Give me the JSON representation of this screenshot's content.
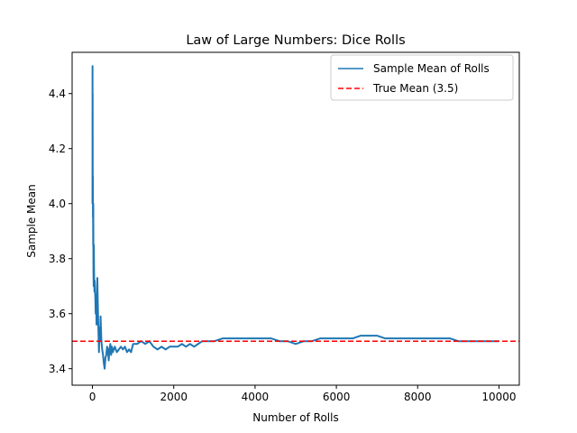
{
  "chart_data": {
    "type": "line",
    "title": "Law of Large Numbers: Dice Rolls",
    "xlabel": "Number of Rolls",
    "ylabel": "Sample Mean",
    "xlim": [
      -500,
      10500
    ],
    "ylim": [
      3.34,
      4.55
    ],
    "xticks": [
      0,
      2000,
      4000,
      6000,
      8000,
      10000
    ],
    "yticks": [
      3.4,
      3.6,
      3.8,
      4.0,
      4.2,
      4.4
    ],
    "xtick_labels": [
      "0",
      "2000",
      "4000",
      "6000",
      "8000",
      "10000"
    ],
    "ytick_labels": [
      "3.4",
      "3.6",
      "3.8",
      "4.0",
      "4.2",
      "4.4"
    ],
    "grid": false,
    "legend_position": "top-right",
    "series": [
      {
        "name": "Sample Mean of Rolls",
        "color": "#1f77b4",
        "style": "solid",
        "x": [
          1,
          2,
          3,
          4,
          5,
          6,
          8,
          10,
          12,
          15,
          18,
          20,
          25,
          30,
          35,
          40,
          45,
          50,
          55,
          60,
          70,
          80,
          90,
          100,
          110,
          120,
          130,
          140,
          150,
          160,
          170,
          180,
          190,
          200,
          220,
          240,
          260,
          280,
          300,
          320,
          340,
          360,
          380,
          400,
          420,
          440,
          460,
          480,
          500,
          550,
          600,
          650,
          700,
          750,
          800,
          850,
          900,
          950,
          1000,
          1100,
          1200,
          1300,
          1400,
          1500,
          1600,
          1700,
          1800,
          1900,
          2000,
          2100,
          2200,
          2300,
          2400,
          2500,
          2600,
          2700,
          2800,
          2900,
          3000,
          3200,
          3400,
          3600,
          3800,
          4000,
          4200,
          4400,
          4600,
          4800,
          5000,
          5200,
          5400,
          5600,
          5800,
          6000,
          6200,
          6400,
          6600,
          6800,
          7000,
          7200,
          7400,
          7600,
          7800,
          8000,
          8200,
          8400,
          8600,
          8800,
          9000,
          9200,
          9400,
          9600,
          9800,
          10000
        ],
        "y": [
          4.0,
          4.5,
          4.0,
          4.25,
          4.4,
          4.1,
          4.0,
          4.1,
          3.95,
          4.0,
          3.85,
          4.0,
          3.75,
          3.7,
          3.85,
          3.75,
          3.7,
          3.68,
          3.72,
          3.7,
          3.66,
          3.6,
          3.67,
          3.56,
          3.62,
          3.73,
          3.65,
          3.58,
          3.52,
          3.46,
          3.52,
          3.55,
          3.5,
          3.59,
          3.5,
          3.47,
          3.45,
          3.42,
          3.4,
          3.44,
          3.45,
          3.48,
          3.47,
          3.43,
          3.47,
          3.49,
          3.45,
          3.48,
          3.46,
          3.48,
          3.46,
          3.47,
          3.48,
          3.47,
          3.48,
          3.46,
          3.47,
          3.46,
          3.49,
          3.49,
          3.5,
          3.49,
          3.5,
          3.48,
          3.47,
          3.48,
          3.47,
          3.48,
          3.48,
          3.48,
          3.49,
          3.48,
          3.49,
          3.48,
          3.49,
          3.5,
          3.5,
          3.5,
          3.5,
          3.51,
          3.51,
          3.51,
          3.51,
          3.51,
          3.51,
          3.51,
          3.5,
          3.5,
          3.49,
          3.5,
          3.5,
          3.51,
          3.51,
          3.51,
          3.51,
          3.51,
          3.52,
          3.52,
          3.52,
          3.51,
          3.51,
          3.51,
          3.51,
          3.51,
          3.51,
          3.51,
          3.51,
          3.51,
          3.5,
          3.5,
          3.5,
          3.5,
          3.5,
          3.5
        ]
      },
      {
        "name": "True Mean (3.5)",
        "color": "#ff0000",
        "style": "dashed",
        "x": [
          -500,
          10500
        ],
        "y": [
          3.5,
          3.5
        ]
      }
    ]
  }
}
